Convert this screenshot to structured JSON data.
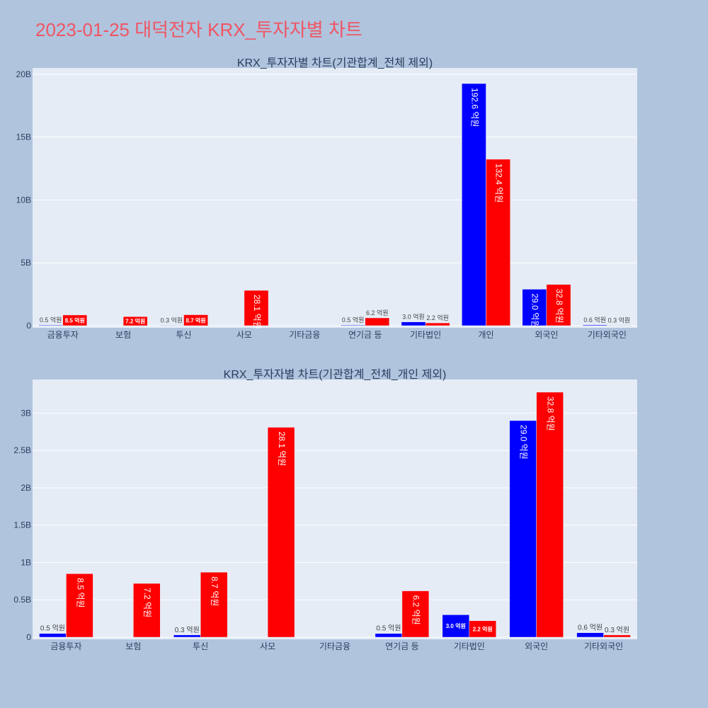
{
  "page": {
    "title": "2023-01-25 대덕전자 KRX_투자자별 차트"
  },
  "colors": {
    "buy": "#0000ff",
    "sell": "#ff0000",
    "paper": "#b0c4de",
    "plot_background": "#e5ecf6",
    "title": "#ef5563"
  },
  "chart_data": [
    {
      "type": "bar",
      "title": "KRX_투자자별 차트(기관합계_전체 제외)",
      "categories": [
        "금융투자",
        "보험",
        "투신",
        "사모",
        "기타금융",
        "연기금 등",
        "기타법인",
        "개인",
        "외국인",
        "기타외국인"
      ],
      "series": [
        {
          "values": [
            50000000,
            0,
            30000000,
            0,
            0,
            50000000,
            300000000,
            19260000000,
            2900000000,
            60000000
          ],
          "labels": [
            "0.5 억원",
            "",
            "0.3 억원",
            "",
            "",
            "0.5 억원",
            "3.0 억원",
            "192.6 억원",
            "29.0 억원",
            "0.6 억원"
          ]
        },
        {
          "values": [
            850000000,
            720000000,
            870000000,
            2810000000,
            0,
            620000000,
            220000000,
            13240000000,
            3280000000,
            30000000
          ],
          "labels": [
            "8.5 억원",
            "7.2 억원",
            "8.7 억원",
            "28.1 억원",
            "",
            "6.2 억원",
            "2.2 억원",
            "132.4 억원",
            "32.8 억원",
            "0.3 억원"
          ]
        }
      ],
      "ylim": [
        0,
        20500000000
      ],
      "yticks": [
        0,
        5000000000,
        10000000000,
        15000000000,
        20000000000
      ],
      "ytick_labels": [
        "0",
        "5B",
        "10B",
        "15B",
        "20B"
      ],
      "grid": true,
      "legend": "none"
    },
    {
      "type": "bar",
      "title": "KRX_투자자별 차트(기관합계_전체_개인 제외)",
      "categories": [
        "금융투자",
        "보험",
        "투신",
        "사모",
        "기타금융",
        "연기금 등",
        "기타법인",
        "외국인",
        "기타외국인"
      ],
      "series": [
        {
          "values": [
            50000000,
            0,
            30000000,
            0,
            0,
            50000000,
            300000000,
            2900000000,
            60000000
          ],
          "labels": [
            "0.5 억원",
            "",
            "0.3 억원",
            "",
            "",
            "0.5 억원",
            "3.0 억원",
            "29.0 억원",
            "0.6 억원"
          ]
        },
        {
          "values": [
            850000000,
            720000000,
            870000000,
            2810000000,
            0,
            620000000,
            220000000,
            3280000000,
            30000000
          ],
          "labels": [
            "8.5 억원",
            "7.2 억원",
            "8.7 억원",
            "28.1 억원",
            "",
            "6.2 억원",
            "2.2 억원",
            "32.8 억원",
            "0.3 억원"
          ]
        }
      ],
      "ylim": [
        0,
        3450000000
      ],
      "yticks": [
        0,
        500000000,
        1000000000,
        1500000000,
        2000000000,
        2500000000,
        3000000000
      ],
      "ytick_labels": [
        "0",
        "0.5B",
        "1B",
        "1.5B",
        "2B",
        "2.5B",
        "3B"
      ],
      "grid": true,
      "legend": "none"
    }
  ]
}
